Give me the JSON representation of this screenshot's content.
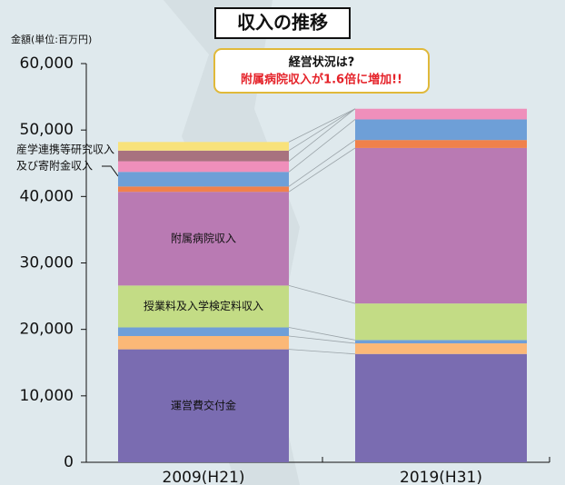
{
  "chart_data": {
    "type": "stacked_bar",
    "title": "収入の推移",
    "y_label": "金額(単位:百万円)",
    "callout": [
      "経営状況は?",
      "附属病院収入が1.6倍に増加!!"
    ],
    "annotation": [
      "産学連携等研究収入",
      "及び寄附金収入"
    ],
    "categories": [
      "2009(H21)",
      "2019(H31)"
    ],
    "series": [
      {
        "name": "運営費交付金",
        "color": "#7a6cb1",
        "values": [
          17000,
          16300
        ]
      },
      {
        "color": "#fbb877",
        "values": [
          2000,
          1600
        ]
      },
      {
        "color": "#6f9fd8",
        "values": [
          1300,
          500
        ]
      },
      {
        "name": "授業料及入学検定料収入",
        "color": "#c3dc85",
        "values": [
          6300,
          5500
        ]
      },
      {
        "name": "附属病院収入",
        "color": "#b97ab3",
        "values": [
          14100,
          23400
        ]
      },
      {
        "color": "#f0814c",
        "values": [
          800,
          1200
        ]
      },
      {
        "color": "#6e9fd7",
        "values": [
          2200,
          3100
        ]
      },
      {
        "color": "#ef8fbb",
        "values": [
          1600,
          1600
        ]
      },
      {
        "color": "#a8727f",
        "values": [
          1600,
          0
        ]
      },
      {
        "color": "#f8e27b",
        "values": [
          1300,
          0
        ]
      }
    ],
    "ylim": [
      0,
      60000
    ],
    "yticks": [
      0,
      {
        "value": 10000,
        "label": "10,000"
      },
      {
        "value": 20000,
        "label": "20,000"
      },
      {
        "value": 30000,
        "label": "30,000"
      },
      {
        "value": 40000,
        "label": "40,000"
      },
      {
        "value": 50000,
        "label": "50,000"
      },
      {
        "value": 60000,
        "label": "60,000"
      }
    ]
  }
}
